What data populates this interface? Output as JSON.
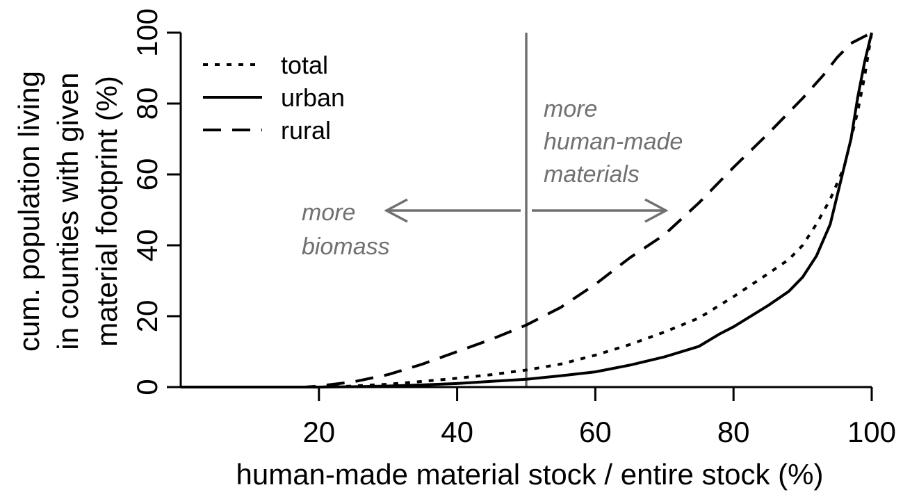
{
  "chart_data": {
    "type": "line",
    "title": "",
    "xlabel": "human-made material stock / entire stock (%)",
    "ylabel_lines": [
      "cum. population living",
      "in counties with given",
      "material footprint (%)"
    ],
    "xlim": [
      0,
      100
    ],
    "ylim": [
      0,
      100
    ],
    "xticks": [
      20,
      40,
      60,
      80,
      100
    ],
    "yticks": [
      0,
      20,
      40,
      60,
      80,
      100
    ],
    "grid": false,
    "legend_position": "top-left",
    "series": [
      {
        "name": "total",
        "dash": "dotted",
        "x": [
          0,
          10,
          20,
          25,
          30,
          35,
          40,
          45,
          50,
          55,
          60,
          65,
          70,
          75,
          80,
          85,
          88,
          90,
          92,
          94,
          96,
          97,
          98,
          99,
          100
        ],
        "y": [
          0,
          0,
          0,
          0.3,
          0.8,
          1.6,
          2.5,
          3.5,
          4.8,
          6.5,
          9,
          12,
          15.5,
          19.5,
          25.5,
          32,
          36,
          40,
          46,
          53,
          62,
          70,
          78,
          88,
          100
        ]
      },
      {
        "name": "urban",
        "dash": "solid",
        "x": [
          0,
          10,
          20,
          25,
          30,
          35,
          40,
          45,
          50,
          55,
          60,
          65,
          70,
          75,
          78,
          80,
          85,
          88,
          90,
          92,
          94,
          95,
          96,
          97,
          98,
          99,
          100
        ],
        "y": [
          0,
          0,
          0,
          0.1,
          0.3,
          0.6,
          1,
          1.6,
          2.2,
          3.2,
          4.3,
          6.2,
          8.5,
          11.5,
          15,
          17,
          23,
          27,
          31,
          37,
          46,
          54,
          62,
          70,
          82,
          92,
          100
        ]
      },
      {
        "name": "rural",
        "dash": "dashed",
        "x": [
          0,
          10,
          18,
          20,
          25,
          30,
          35,
          40,
          45,
          50,
          55,
          60,
          65,
          70,
          75,
          80,
          85,
          90,
          93,
          95,
          97,
          99,
          100
        ],
        "y": [
          0,
          0,
          0,
          0.3,
          1.5,
          3.5,
          6.5,
          10,
          13.5,
          17.5,
          22.5,
          29,
          36.5,
          43,
          52,
          62,
          71.5,
          81.5,
          88,
          93,
          97,
          99,
          100
        ]
      }
    ],
    "vline_x": 50,
    "annotations": {
      "left_lines": [
        "more",
        "biomass"
      ],
      "right_lines": [
        "more",
        "human-made",
        "materials"
      ]
    }
  }
}
